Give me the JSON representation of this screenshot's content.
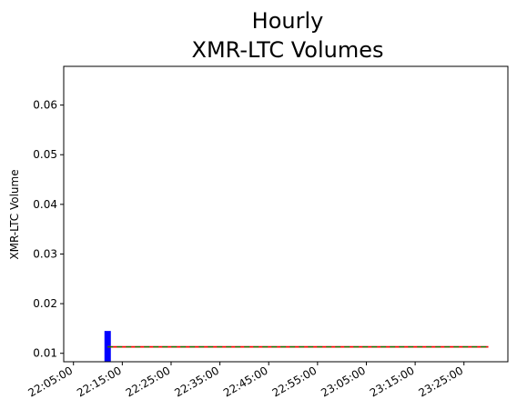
{
  "chart_data": {
    "type": "bar",
    "title_lines": [
      "Hourly",
      "XMR-LTC Volumes"
    ],
    "xlabel": "",
    "ylabel": "XMR-LTC Volume",
    "x_tick_labels": [
      "22:05:00",
      "22:15:00",
      "22:25:00",
      "22:35:00",
      "22:45:00",
      "22:55:00",
      "23:05:00",
      "23:15:00",
      "23:25:00"
    ],
    "y_tick_labels": [
      "0.01",
      "0.02",
      "0.03",
      "0.04",
      "0.05",
      "0.06"
    ],
    "y_ticks": [
      0.01,
      0.02,
      0.03,
      0.04,
      0.05,
      0.06
    ],
    "xlim": [
      "22:03:00",
      "23:34:00"
    ],
    "ylim": [
      0.0083,
      0.0678
    ],
    "bars": [
      {
        "x": "22:12:00",
        "value": 0.0145
      }
    ],
    "lines": [
      {
        "x": [
          "22:12:00",
          "23:30:00"
        ],
        "y": [
          0.0113,
          0.0113
        ]
      },
      {
        "x": [
          "22:12:00",
          "23:30:00"
        ],
        "y": [
          0.0113,
          0.0113
        ],
        "style": "dashed"
      }
    ],
    "grid": false,
    "colors": {
      "bar": "#0000ff",
      "line1": "#ff0000",
      "line2": "#008000"
    }
  }
}
